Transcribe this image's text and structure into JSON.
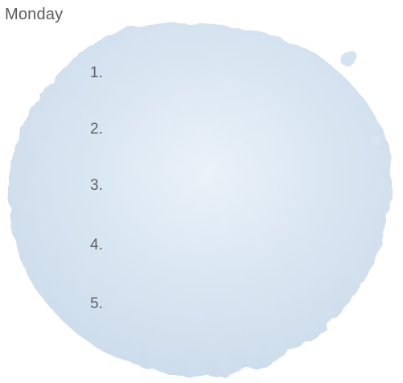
{
  "title": "Monday",
  "items": [
    "1.",
    "2.",
    "3.",
    "4.",
    "5."
  ],
  "colors": {
    "watercolor": "#dbe8f3",
    "watercolor_dark": "#c9d9ea",
    "text": "#5f6168"
  }
}
